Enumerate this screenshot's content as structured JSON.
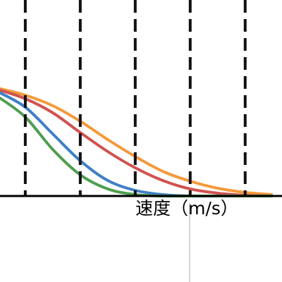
{
  "chart_data": {
    "type": "line",
    "x_label": "速度（m/s）",
    "x": [
      -0.5,
      0,
      0.5,
      1,
      1.5,
      2,
      2.5,
      3,
      3.5,
      4,
      4.5
    ],
    "series": [
      {
        "name": "orange",
        "color": "#f4993a",
        "values": [
          1.53,
          1.43,
          1.28,
          1.06,
          0.8,
          0.56,
          0.35,
          0.21,
          0.11,
          0.05,
          0.02
        ]
      },
      {
        "name": "red",
        "color": "#d0524f",
        "values": [
          1.51,
          1.38,
          1.18,
          0.9,
          0.63,
          0.4,
          0.22,
          0.1,
          0.04,
          0.01,
          0.0
        ]
      },
      {
        "name": "blue",
        "color": "#3f80c6",
        "values": [
          1.48,
          1.26,
          0.88,
          0.5,
          0.22,
          0.08,
          0.02,
          0.0,
          0.0,
          0.0,
          0.0
        ]
      },
      {
        "name": "green",
        "color": "#4f9e4e",
        "values": [
          1.41,
          1.12,
          0.66,
          0.3,
          0.1,
          0.02,
          0.0,
          0.0,
          0.0,
          0.0,
          0.0
        ]
      }
    ],
    "xlim": [
      -0.46,
      4.67
    ],
    "ylim": [
      0,
      2.78
    ],
    "dashed_lines": [
      0,
      1,
      2,
      3,
      4
    ]
  }
}
